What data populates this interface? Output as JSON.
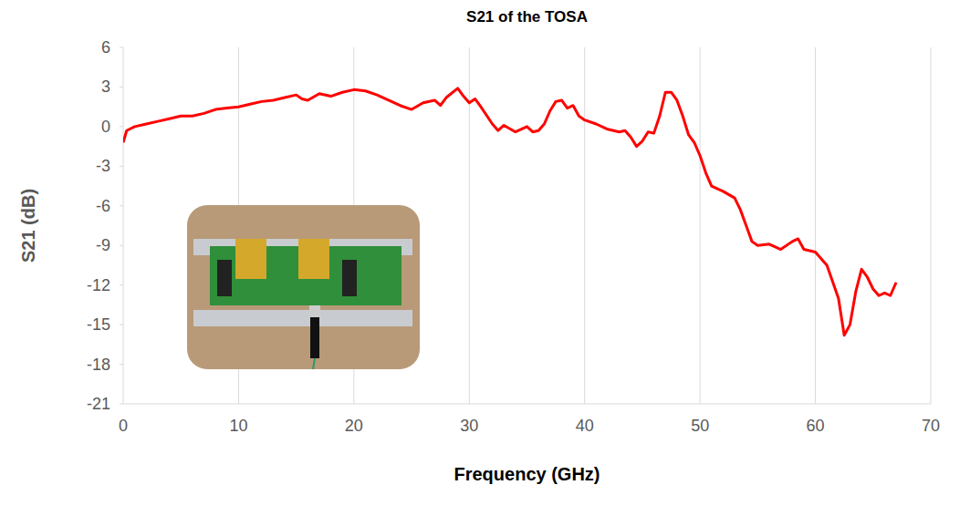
{
  "chart_data": {
    "type": "line",
    "title": "S21 of the TOSA",
    "x_label": "Frequency (GHz)",
    "y_label": "S21 (dB)",
    "xlim": [
      0,
      70
    ],
    "xticks": [
      0,
      10,
      20,
      30,
      40,
      50,
      60,
      70
    ],
    "ylim": [
      -21,
      6
    ],
    "yticks": [
      -21,
      -18,
      -15,
      -12,
      -9,
      -6,
      -3,
      0,
      3,
      6
    ],
    "grid": true,
    "series": [
      {
        "name": "S21",
        "color": "#ff0000",
        "x": [
          0,
          0.3,
          1,
          2,
          3,
          4,
          5,
          6,
          7,
          8,
          9,
          10,
          11,
          12,
          13,
          14,
          15,
          15.5,
          16,
          17,
          18,
          19,
          20,
          21,
          22,
          23,
          24,
          25,
          26,
          27,
          27.5,
          28,
          29,
          29.5,
          30,
          30.5,
          31,
          32,
          32.5,
          33,
          34,
          35,
          35.5,
          36,
          36.5,
          37,
          37.5,
          38,
          38.5,
          39,
          39.5,
          40,
          41,
          42,
          43,
          43.5,
          44,
          44.5,
          45,
          45.5,
          46,
          46.5,
          47,
          47.5,
          48,
          48.5,
          49,
          49.5,
          50,
          50.5,
          51,
          52,
          53,
          53.5,
          54,
          54.5,
          55,
          56,
          57,
          58,
          58.5,
          59,
          60,
          61,
          62,
          62.5,
          63,
          63.5,
          64,
          64.5,
          65,
          65.5,
          66,
          66.5,
          67
        ],
        "values": [
          -1.2,
          -0.3,
          0,
          0.2,
          0.4,
          0.6,
          0.8,
          0.8,
          1.0,
          1.3,
          1.4,
          1.5,
          1.7,
          1.9,
          2.0,
          2.2,
          2.4,
          2.1,
          2.0,
          2.5,
          2.3,
          2.6,
          2.8,
          2.7,
          2.4,
          2.0,
          1.6,
          1.3,
          1.8,
          2.0,
          1.6,
          2.2,
          2.9,
          2.3,
          1.8,
          2.1,
          1.5,
          0.2,
          -0.3,
          0.1,
          -0.4,
          0,
          -0.4,
          -0.3,
          0.2,
          1.2,
          1.9,
          2.0,
          1.4,
          1.6,
          0.8,
          0.5,
          0.2,
          -0.2,
          -0.4,
          -0.3,
          -0.8,
          -1.5,
          -1.1,
          -0.4,
          -0.5,
          0.8,
          2.6,
          2.6,
          2.0,
          0.8,
          -0.6,
          -1.2,
          -2.2,
          -3.5,
          -4.5,
          -4.9,
          -5.4,
          -6.3,
          -7.5,
          -8.7,
          -9.0,
          -8.9,
          -9.3,
          -8.7,
          -8.5,
          -9.3,
          -9.5,
          -10.5,
          -13,
          -15.8,
          -15,
          -12.5,
          -10.8,
          -11.4,
          -12.3,
          -12.8,
          -12.6,
          -12.8,
          -11.8
        ]
      }
    ]
  }
}
